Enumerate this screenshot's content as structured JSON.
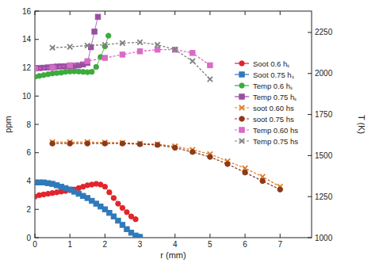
{
  "chart_data": {
    "type": "line",
    "x_label": "r (mm)",
    "y_label": "ppm",
    "y2_label": "T (K)",
    "xlim": [
      0,
      7.9
    ],
    "xticks": [
      0,
      1,
      2,
      3,
      4,
      5,
      6,
      7
    ],
    "ylim": [
      0,
      16
    ],
    "yticks": [
      0,
      2,
      4,
      6,
      8,
      10,
      12,
      14,
      16
    ],
    "y2lim": [
      1000,
      2380
    ],
    "y2ticks": [
      1000,
      1250,
      1500,
      1750,
      2000,
      2250
    ],
    "legend": "right",
    "grid": false,
    "series": [
      {
        "name": "Soot 0.6 hₛ",
        "color": "#e3242b",
        "marker": "circle",
        "line_style": "solid",
        "x": [
          0,
          0.125,
          0.25,
          0.375,
          0.5,
          0.625,
          0.75,
          0.875,
          1.0,
          1.125,
          1.25,
          1.375,
          1.5,
          1.625,
          1.75,
          1.875,
          2.0,
          2.125,
          2.25,
          2.375,
          2.5,
          2.625,
          2.75,
          2.875
        ],
        "values": [
          2.9,
          3.0,
          3.05,
          3.1,
          3.15,
          3.2,
          3.25,
          3.3,
          3.35,
          3.4,
          3.5,
          3.6,
          3.7,
          3.75,
          3.8,
          3.75,
          3.6,
          3.2,
          2.8,
          2.4,
          2.1,
          1.8,
          1.5,
          1.3
        ]
      },
      {
        "name": "Soot 0.75 hₛ",
        "color": "#2f7ab9",
        "marker": "square",
        "line_style": "solid",
        "x": [
          0,
          0.125,
          0.25,
          0.375,
          0.5,
          0.625,
          0.75,
          0.875,
          1.0,
          1.125,
          1.25,
          1.375,
          1.5,
          1.625,
          1.75,
          1.875,
          2.0,
          2.125,
          2.25,
          2.375,
          2.5,
          2.625,
          2.75,
          2.875,
          3.0
        ],
        "values": [
          3.9,
          3.9,
          3.9,
          3.85,
          3.8,
          3.7,
          3.6,
          3.5,
          3.4,
          3.25,
          3.1,
          2.95,
          2.8,
          2.6,
          2.4,
          2.2,
          2.0,
          1.75,
          1.5,
          1.2,
          0.9,
          0.6,
          0.35,
          0.15,
          0.05
        ]
      },
      {
        "name": "Temp 0.6 hₛ",
        "color": "#3cab3c",
        "marker": "circle",
        "line_style": "solid",
        "axis": "y2",
        "x": [
          0,
          0.125,
          0.25,
          0.375,
          0.5,
          0.625,
          0.75,
          0.875,
          1.0,
          1.125,
          1.25,
          1.375,
          1.5,
          1.625,
          1.75,
          1.875,
          2.0,
          2.1
        ],
        "values": [
          1980,
          1985,
          1990,
          1995,
          2000,
          2003,
          2005,
          2010,
          2012,
          2013,
          2012,
          2010,
          2008,
          2010,
          2040,
          2100,
          2165,
          2230
        ]
      },
      {
        "name": "Temp 0.75 hₛ",
        "color": "#9a4ea3",
        "marker": "square",
        "line_style": "solid",
        "axis": "y2",
        "x": [
          0,
          0.125,
          0.25,
          0.375,
          0.5,
          0.625,
          0.75,
          0.875,
          1.0,
          1.125,
          1.25,
          1.375,
          1.5,
          1.6,
          1.7,
          1.8
        ],
        "values": [
          2033,
          2033,
          2035,
          2037,
          2040,
          2042,
          2043,
          2044,
          2045,
          2047,
          2050,
          2055,
          2065,
          2160,
          2255,
          2345
        ]
      },
      {
        "name": "soot 0.60 hs",
        "color": "#e07b22",
        "marker": "x",
        "line_style": "dashed",
        "x": [
          0.5,
          1,
          1.5,
          2,
          2.5,
          3,
          3.5,
          4,
          4.5,
          5,
          5.5,
          6,
          6.5,
          7
        ],
        "values": [
          6.75,
          6.75,
          6.75,
          6.72,
          6.7,
          6.65,
          6.6,
          6.45,
          6.2,
          5.9,
          5.4,
          4.9,
          4.3,
          3.6
        ]
      },
      {
        "name": "soot 0.75 hs",
        "color": "#8b3a1c",
        "marker": "circle",
        "line_style": "dashed",
        "x": [
          0.5,
          1,
          1.5,
          2,
          2.5,
          3,
          3.5,
          4,
          4.5,
          5,
          5.5,
          6,
          6.5,
          7
        ],
        "values": [
          6.65,
          6.65,
          6.65,
          6.65,
          6.65,
          6.6,
          6.55,
          6.35,
          6.05,
          5.7,
          5.2,
          4.6,
          4.0,
          3.4
        ]
      },
      {
        "name": "Temp  0.60 hs",
        "color": "#d86bc6",
        "marker": "square",
        "line_style": "dashed",
        "axis": "y2",
        "x": [
          0,
          0.5,
          1,
          1.5,
          2,
          2.5,
          3,
          3.5,
          4,
          4.5,
          5
        ],
        "values": [
          2030,
          2035,
          2050,
          2075,
          2095,
          2115,
          2135,
          2145,
          2145,
          2125,
          2050
        ]
      },
      {
        "name": "Temp  0.75 hs",
        "color": "#808080",
        "marker": "x",
        "line_style": "dashed",
        "axis": "y2",
        "x": [
          0.5,
          1,
          1.5,
          2,
          2.5,
          3,
          3.5,
          4,
          4.5,
          5
        ],
        "values": [
          2157,
          2162,
          2170,
          2175,
          2185,
          2190,
          2175,
          2145,
          2075,
          1965
        ]
      }
    ]
  }
}
